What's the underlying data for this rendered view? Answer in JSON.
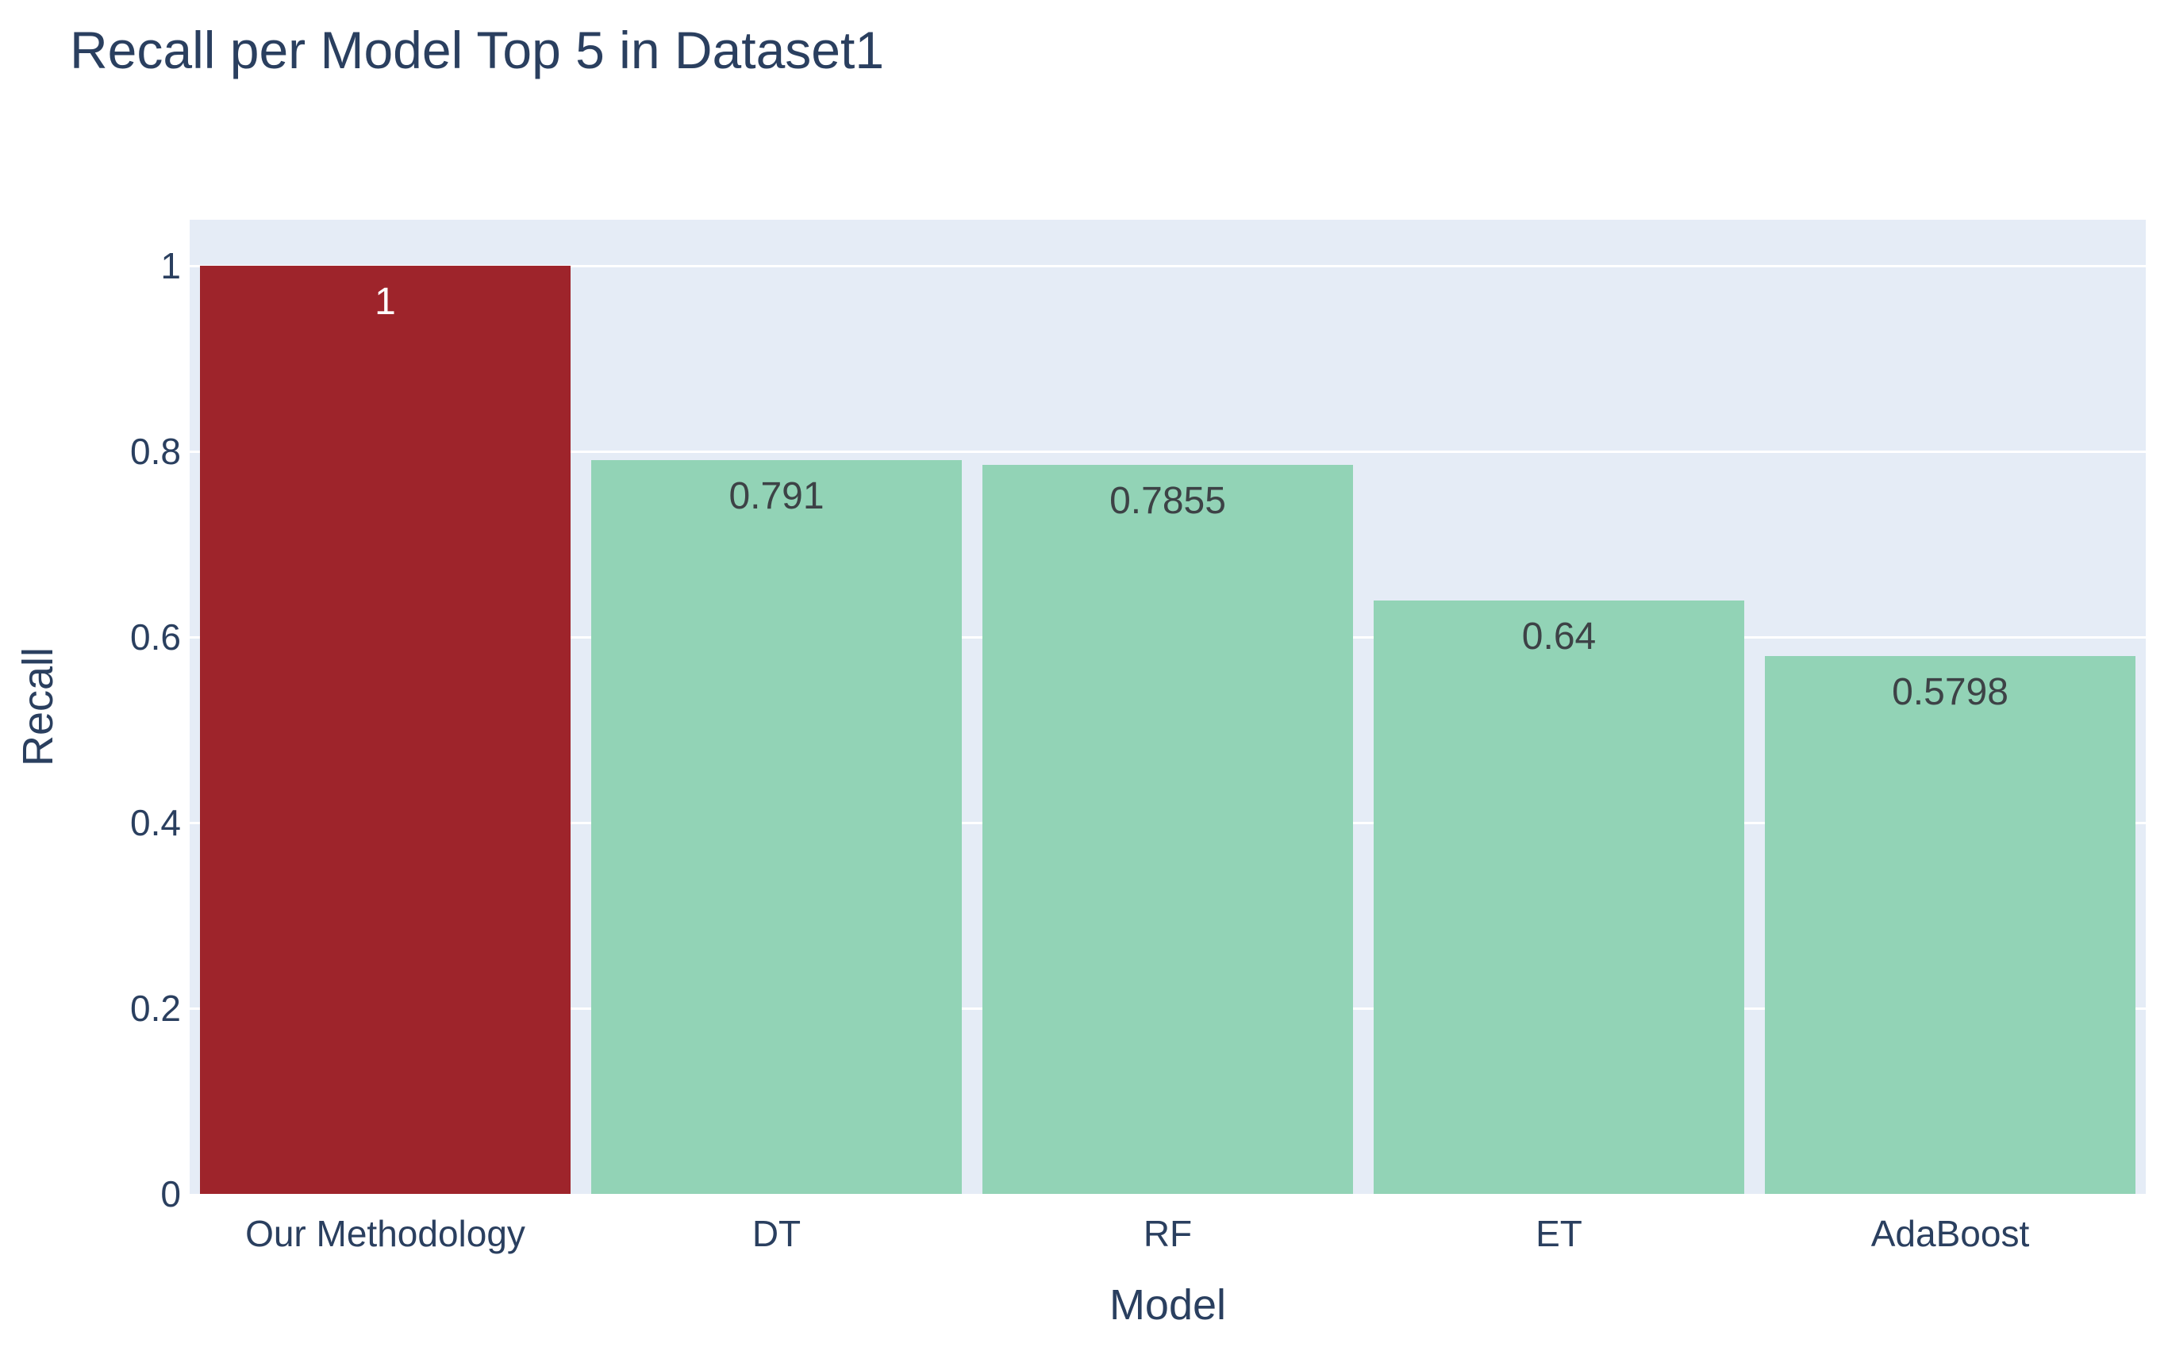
{
  "chart_data": {
    "type": "bar",
    "title": "Recall per Model Top 5 in Dataset1",
    "xlabel": "Model",
    "ylabel": "Recall",
    "categories": [
      "Our Methodology",
      "DT",
      "RF",
      "ET",
      "AdaBoost"
    ],
    "values": [
      1,
      0.791,
      0.7855,
      0.64,
      0.5798
    ],
    "bar_labels": [
      "1",
      "0.791",
      "0.7855",
      "0.64",
      "0.5798"
    ],
    "bar_colors": [
      "#9e242b",
      "#92d3b6",
      "#92d3b6",
      "#92d3b6",
      "#92d3b6"
    ],
    "bar_label_colors": [
      "#ffffff",
      "#3d4246",
      "#3d4246",
      "#3d4246",
      "#3d4246"
    ],
    "yticks": [
      0,
      0.2,
      0.4,
      0.6,
      0.8,
      1
    ],
    "ytick_labels": [
      "0",
      "0.2",
      "0.4",
      "0.6",
      "0.8",
      "1"
    ],
    "ylim": [
      0,
      1.05
    ],
    "grid": true,
    "legend_position": "none",
    "colors": {
      "plot_background": "#e5ecf6",
      "gridline": "#ffffff",
      "text": "#2a3f5f",
      "page_background": "#ffffff"
    }
  }
}
